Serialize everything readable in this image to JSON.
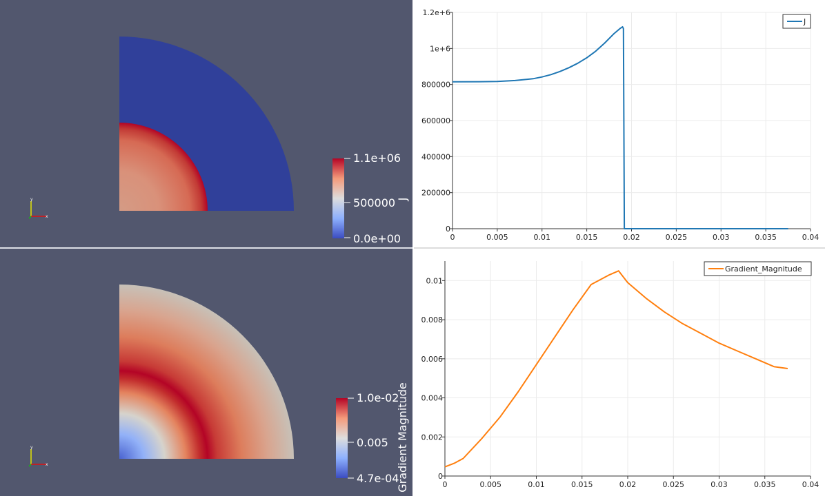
{
  "panels": {
    "top_left": {
      "type": "3d-render",
      "field": "J",
      "colorbar": {
        "title": "J",
        "max_label": "1.1e+06",
        "mid_label": "500000",
        "min_label": "0.0e+00"
      }
    },
    "bottom_left": {
      "type": "3d-render",
      "field": "Gradient Magnitude",
      "colorbar": {
        "title": "Gradient Magnitude",
        "max_label": "1.0e-02",
        "mid_label": "0.005",
        "min_label": "4.7e-04"
      }
    }
  },
  "colors": {
    "background": "#52576e",
    "cool_blue": "#3b4cc0",
    "neutral": "#dddddd",
    "warm_red": "#b40426",
    "line_J": "#1f77b4",
    "line_grad": "#ff7f0e"
  },
  "chart_data": [
    {
      "type": "line",
      "title": "",
      "xlabel": "",
      "ylabel": "",
      "xlim": [
        0,
        0.04
      ],
      "ylim": [
        0,
        1200000
      ],
      "x_tick_labels": [
        "0",
        "0.005",
        "0.01",
        "0.015",
        "0.02",
        "0.025",
        "0.03",
        "0.035",
        "0.04"
      ],
      "y_tick_labels": [
        "0",
        "200000",
        "400000",
        "600000",
        "800000",
        "1e+6",
        "1.2e+6"
      ],
      "y_ticks": [
        0,
        200000,
        400000,
        600000,
        800000,
        1000000,
        1200000
      ],
      "x_ticks": [
        0,
        0.005,
        0.01,
        0.015,
        0.02,
        0.025,
        0.03,
        0.035,
        0.04
      ],
      "grid": true,
      "legend_position": "top-right",
      "series": [
        {
          "name": "J",
          "color": "#1f77b4",
          "x": [
            0,
            0.003,
            0.005,
            0.007,
            0.009,
            0.01,
            0.011,
            0.012,
            0.013,
            0.014,
            0.015,
            0.016,
            0.017,
            0.018,
            0.0187,
            0.019,
            0.0191,
            0.0192,
            0.025,
            0.03,
            0.0375
          ],
          "y": [
            815000,
            815500,
            817000,
            822000,
            832000,
            842000,
            855000,
            872000,
            893000,
            918000,
            948000,
            985000,
            1030000,
            1080000,
            1110000,
            1120000,
            1110000,
            0,
            0,
            0,
            0
          ]
        }
      ]
    },
    {
      "type": "line",
      "title": "",
      "xlabel": "",
      "ylabel": "",
      "xlim": [
        0,
        0.04
      ],
      "ylim": [
        0,
        0.011
      ],
      "x_tick_labels": [
        "0",
        "0.005",
        "0.01",
        "0.015",
        "0.02",
        "0.025",
        "0.03",
        "0.035",
        "0.04"
      ],
      "y_tick_labels": [
        "0",
        "0.002",
        "0.004",
        "0.006",
        "0.008",
        "0.01"
      ],
      "y_ticks": [
        0,
        0.002,
        0.004,
        0.006,
        0.008,
        0.01
      ],
      "x_ticks": [
        0,
        0.005,
        0.01,
        0.015,
        0.02,
        0.025,
        0.03,
        0.035,
        0.04
      ],
      "grid": true,
      "legend_position": "top-right",
      "series": [
        {
          "name": "Gradient_Magnitude",
          "color": "#ff7f0e",
          "x": [
            0,
            0.001,
            0.002,
            0.004,
            0.006,
            0.008,
            0.01,
            0.012,
            0.014,
            0.016,
            0.018,
            0.019,
            0.02,
            0.022,
            0.024,
            0.026,
            0.028,
            0.03,
            0.032,
            0.034,
            0.036,
            0.0375
          ],
          "y": [
            0.00047,
            0.00065,
            0.0009,
            0.0019,
            0.003,
            0.0043,
            0.0057,
            0.0071,
            0.0085,
            0.0098,
            0.0103,
            0.0105,
            0.0099,
            0.0091,
            0.0084,
            0.0078,
            0.0073,
            0.0068,
            0.0064,
            0.006,
            0.0056,
            0.0055
          ]
        }
      ]
    }
  ]
}
